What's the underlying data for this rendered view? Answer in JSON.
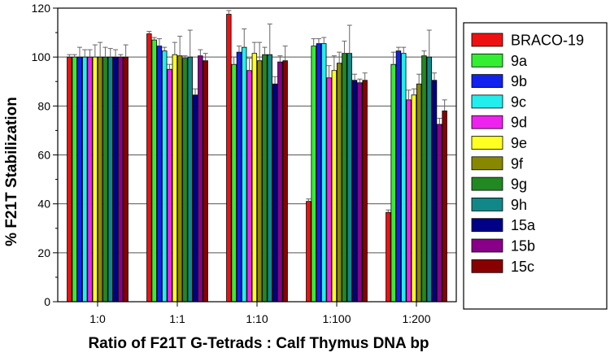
{
  "chart_data": {
    "type": "bar",
    "xlabel": "Ratio of F21T G-Tetrads : Calf Thymus DNA bp",
    "ylabel": "% F21T Stabilization",
    "ylim": [
      0,
      120
    ],
    "yticks": [
      0,
      20,
      40,
      60,
      80,
      100,
      120
    ],
    "grid": "horizontal",
    "legend_position": "right",
    "categories": [
      "1:0",
      "1:1",
      "1:10",
      "1:100",
      "1:200"
    ],
    "series": [
      {
        "name": "BRACO-19",
        "color": "#ee1111",
        "values": [
          100,
          109.5,
          117.5,
          41,
          36.5
        ],
        "errors": [
          1,
          1,
          1.5,
          1,
          1
        ]
      },
      {
        "name": "9a",
        "color": "#33ee33",
        "values": [
          100,
          107,
          97,
          104.5,
          97
        ],
        "errors": [
          1,
          1,
          3,
          3,
          5
        ]
      },
      {
        "name": "9b",
        "color": "#1122ee",
        "values": [
          100,
          104.5,
          102,
          105.5,
          102.5
        ],
        "errors": [
          4,
          3,
          2.5,
          2,
          1.5
        ]
      },
      {
        "name": "9c",
        "color": "#22eeee",
        "values": [
          100,
          102.5,
          104,
          105.5,
          101.5
        ],
        "errors": [
          3,
          1.5,
          7.5,
          2.5,
          2.5
        ]
      },
      {
        "name": "9d",
        "color": "#ee22ee",
        "values": [
          100,
          95,
          94.5,
          91.5,
          82.5
        ],
        "errors": [
          3,
          2,
          5,
          5,
          4
        ]
      },
      {
        "name": "9e",
        "color": "#ffff22",
        "values": [
          100,
          101,
          101.5,
          94.5,
          84.5
        ],
        "errors": [
          5,
          5,
          4.5,
          6,
          2.5
        ]
      },
      {
        "name": "9f",
        "color": "#888800",
        "values": [
          100,
          100.5,
          98.5,
          97.5,
          89
        ],
        "errors": [
          6,
          8,
          7.5,
          4.5,
          4
        ]
      },
      {
        "name": "9g",
        "color": "#228822",
        "values": [
          100,
          99.5,
          101,
          101.5,
          100.5
        ],
        "errors": [
          4,
          1,
          3,
          5,
          2
        ]
      },
      {
        "name": "9h",
        "color": "#118888",
        "values": [
          100,
          100,
          101,
          101.5,
          100
        ],
        "errors": [
          3.5,
          11,
          12.5,
          11.5,
          11
        ]
      },
      {
        "name": "15a",
        "color": "#000088",
        "values": [
          100,
          84.5,
          89,
          90.5,
          90.5
        ],
        "errors": [
          3,
          2.5,
          3,
          2.5,
          3
        ]
      },
      {
        "name": "15b",
        "color": "#880088",
        "values": [
          100,
          100.5,
          98,
          89.5,
          72.5
        ],
        "errors": [
          1,
          2.5,
          2.5,
          1.5,
          2.5
        ]
      },
      {
        "name": "15c",
        "color": "#880000",
        "values": [
          100,
          98.5,
          98.5,
          90.5,
          78
        ],
        "errors": [
          5,
          3,
          6,
          3,
          4.5
        ]
      }
    ]
  }
}
